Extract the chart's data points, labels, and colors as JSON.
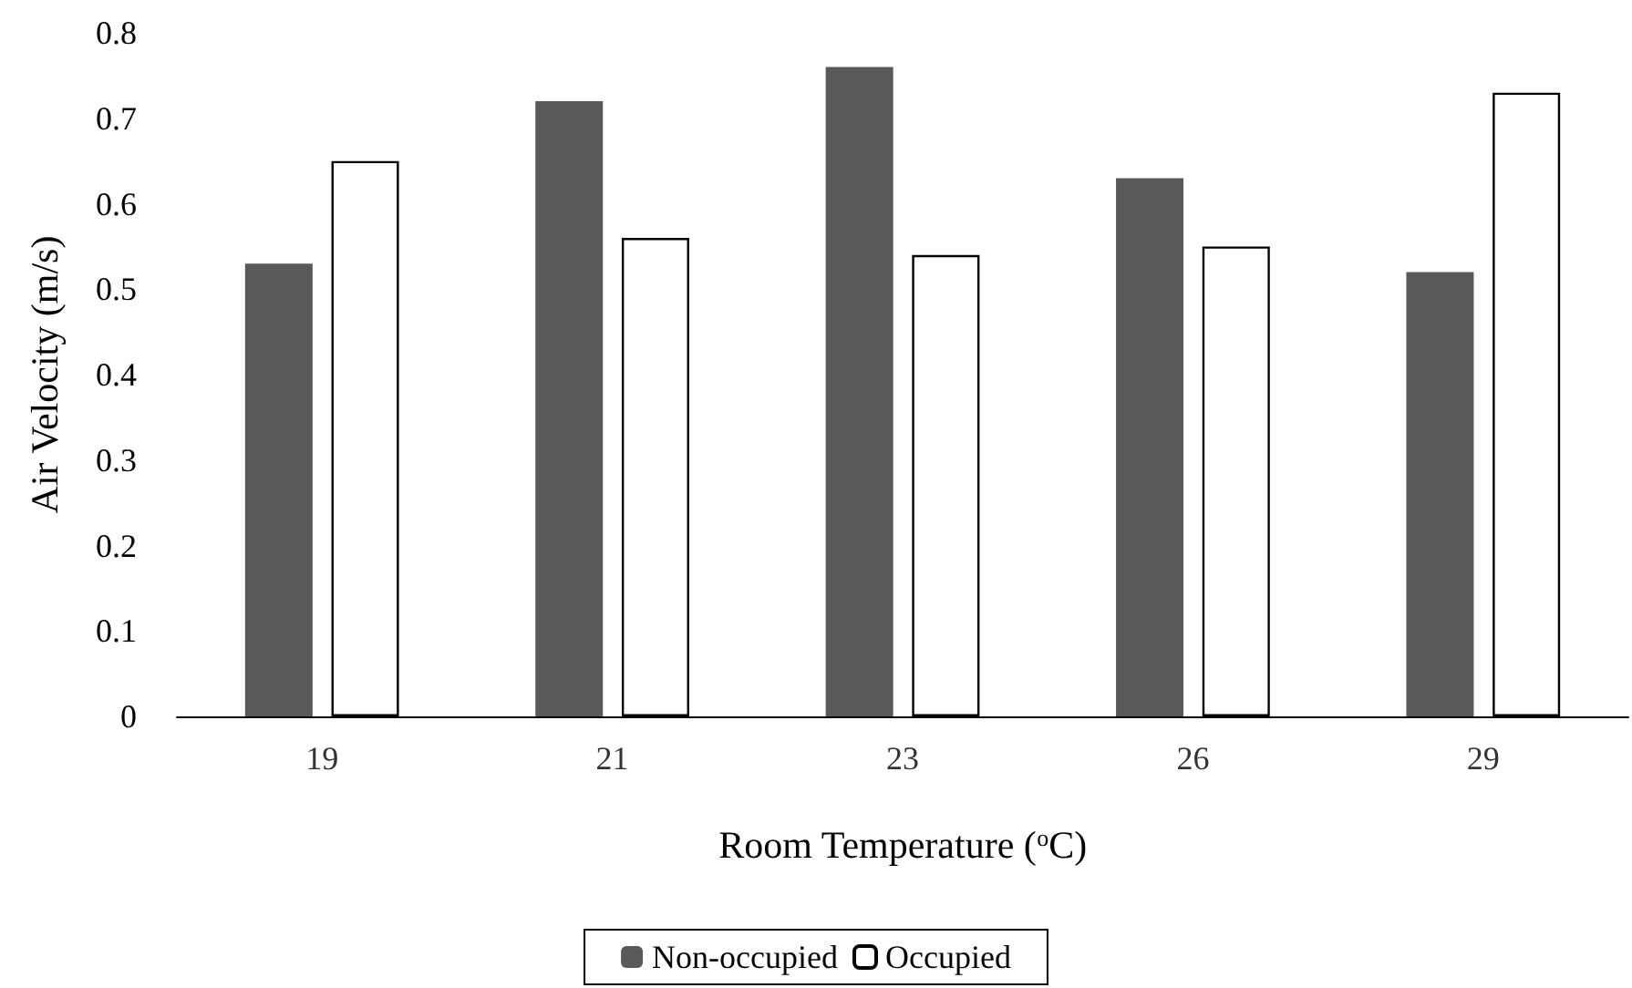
{
  "chart_data": {
    "type": "bar",
    "xlabel": "Room Temperature ($^{o}$C)",
    "ylabel": "Air Velocity (m/s)",
    "categories": [
      "19",
      "21",
      "23",
      "26",
      "29"
    ],
    "series": [
      {
        "name": "Non-occupied",
        "color": "#595959",
        "values": [
          0.53,
          0.72,
          0.76,
          0.63,
          0.52
        ]
      },
      {
        "name": "Occupied",
        "color": "#ffffff",
        "values": [
          0.65,
          0.56,
          0.54,
          0.55,
          0.73
        ]
      }
    ],
    "ylim": [
      0,
      0.8
    ],
    "yticks": [
      0,
      0.1,
      0.2,
      0.3,
      0.4,
      0.5,
      0.6,
      0.7,
      0.8
    ],
    "grid": false,
    "legend": "bottom"
  }
}
